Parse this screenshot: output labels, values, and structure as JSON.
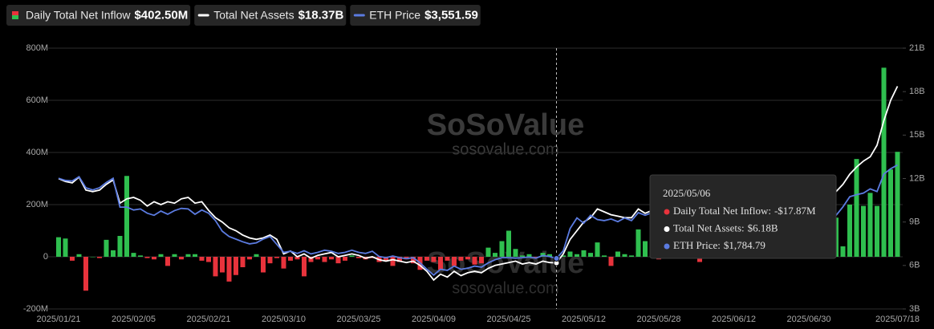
{
  "chart_data": {
    "type": "bar",
    "categories": [
      "2025/01/21",
      null,
      null,
      null,
      null,
      null,
      null,
      null,
      null,
      null,
      null,
      "2025/02/05",
      null,
      null,
      null,
      null,
      null,
      null,
      null,
      null,
      null,
      null,
      "2025/02/21",
      null,
      null,
      null,
      null,
      null,
      null,
      null,
      null,
      null,
      null,
      "2025/03/10",
      null,
      null,
      null,
      null,
      null,
      null,
      null,
      null,
      null,
      null,
      "2025/03/25",
      null,
      null,
      null,
      null,
      null,
      null,
      null,
      null,
      null,
      null,
      "2025/04/09",
      null,
      null,
      null,
      null,
      null,
      null,
      null,
      null,
      null,
      null,
      "2025/04/25",
      null,
      null,
      null,
      null,
      null,
      null,
      null,
      null,
      null,
      null,
      "2025/05/12",
      null,
      null,
      null,
      null,
      null,
      null,
      null,
      null,
      null,
      null,
      "2025/05/28",
      null,
      null,
      null,
      null,
      null,
      null,
      null,
      null,
      null,
      null,
      "2025/06/12",
      null,
      null,
      null,
      null,
      null,
      null,
      null,
      null,
      null,
      null,
      "2025/06/30",
      null,
      null,
      null,
      null,
      null,
      null,
      null,
      null,
      null,
      null,
      null,
      null,
      "2025/07/18"
    ],
    "series": [
      {
        "name": "Daily Total Net Inflow",
        "summary_label": "$402.50M",
        "type": "bar",
        "axis": "y",
        "positive_color": "#2fbf4f",
        "negative_color": "#e8333c",
        "values": [
          75,
          70,
          -15,
          10,
          -130,
          0,
          -5,
          65,
          25,
          80,
          310,
          15,
          5,
          -5,
          -10,
          10,
          -35,
          10,
          -10,
          10,
          10,
          -15,
          -20,
          -75,
          -60,
          -95,
          -70,
          -40,
          -10,
          10,
          -60,
          -25,
          -5,
          -45,
          -15,
          -10,
          -75,
          -20,
          -10,
          -20,
          -10,
          -25,
          -15,
          5,
          -5,
          -10,
          -5,
          -20,
          -15,
          -35,
          -20,
          -10,
          -25,
          -50,
          -15,
          -20,
          -50,
          -15,
          -35,
          -15,
          -10,
          -30,
          -25,
          35,
          15,
          60,
          100,
          30,
          5,
          10,
          -5,
          15,
          10,
          -17.87,
          5,
          20,
          10,
          25,
          15,
          55,
          5,
          -35,
          20,
          10,
          5,
          105,
          60,
          30,
          -10,
          20,
          40,
          10,
          60,
          15,
          -20,
          25,
          50,
          30,
          10,
          40,
          -5,
          20,
          45,
          60,
          25,
          35,
          80,
          50,
          100,
          65,
          120,
          70,
          90,
          60,
          150,
          40,
          200,
          375,
          195,
          245,
          195,
          725,
          335,
          402.5
        ]
      },
      {
        "name": "Total Net Assets",
        "summary_label": "$18.37B",
        "type": "line",
        "axis": "y2",
        "color": "#ffffff",
        "values": [
          12.0,
          11.8,
          11.7,
          12.1,
          11.2,
          11.1,
          11.2,
          11.6,
          11.9,
          10.3,
          10.6,
          10.7,
          10.5,
          10.1,
          10.4,
          10.2,
          10.4,
          10.3,
          10.6,
          10.7,
          10.3,
          10.4,
          9.8,
          9.3,
          9.0,
          8.6,
          8.4,
          8.1,
          7.9,
          7.8,
          7.9,
          8.1,
          7.8,
          6.8,
          7.0,
          6.6,
          6.8,
          6.5,
          6.7,
          6.8,
          6.9,
          6.6,
          6.7,
          6.8,
          6.7,
          6.5,
          6.6,
          6.4,
          6.3,
          6.4,
          6.3,
          6.2,
          6.3,
          6.0,
          5.6,
          5.0,
          5.4,
          5.2,
          5.6,
          5.3,
          5.5,
          5.6,
          5.5,
          5.8,
          6.0,
          6.1,
          6.2,
          6.3,
          6.1,
          6.2,
          6.1,
          6.3,
          6.2,
          6.18,
          6.8,
          7.8,
          8.4,
          9.0,
          9.3,
          9.9,
          9.7,
          9.5,
          9.4,
          9.3,
          9.3,
          9.9,
          9.6,
          9.8,
          9.9,
          10.0,
          9.8,
          9.7,
          9.9,
          10.1,
          10.0,
          9.8,
          9.6,
          9.7,
          9.9,
          10.0,
          10.2,
          10.1,
          9.9,
          10.0,
          10.2,
          10.3,
          10.1,
          10.4,
          10.6,
          10.5,
          10.7,
          10.8,
          10.6,
          10.9,
          11.1,
          11.6,
          12.3,
          12.8,
          13.2,
          13.5,
          14.3,
          16.0,
          17.4,
          18.37
        ]
      },
      {
        "name": "ETH Price",
        "summary_label": "$3,551.59",
        "type": "line",
        "axis": "y3",
        "color": "#5b7be0",
        "values": [
          3300,
          3260,
          3250,
          3330,
          3120,
          3080,
          3120,
          3220,
          3300,
          2755,
          2755,
          2700,
          2720,
          2640,
          2600,
          2680,
          2620,
          2690,
          2730,
          2720,
          2620,
          2700,
          2640,
          2500,
          2300,
          2200,
          2150,
          2100,
          2060,
          2080,
          2150,
          2200,
          2050,
          1900,
          1920,
          1880,
          1930,
          1870,
          1900,
          1940,
          1920,
          1880,
          1900,
          1940,
          1900,
          1880,
          1920,
          1820,
          1800,
          1830,
          1800,
          1780,
          1800,
          1700,
          1580,
          1470,
          1580,
          1560,
          1640,
          1580,
          1600,
          1640,
          1620,
          1700,
          1760,
          1800,
          1800,
          1790,
          1800,
          1810,
          1790,
          1840,
          1820,
          1784.79,
          1930,
          2350,
          2550,
          2450,
          2600,
          2520,
          2500,
          2530,
          2480,
          2550,
          2500,
          2650,
          2600,
          2650,
          2700,
          2620,
          2600,
          2550,
          2500,
          2620,
          2680,
          2600,
          2620,
          2780,
          2650,
          2500,
          2480,
          2550,
          2400,
          2250,
          2430,
          2400,
          2420,
          2480,
          2460,
          2500,
          2440,
          2420,
          2510,
          2570,
          2600,
          2760,
          2950,
          2990,
          3020,
          3100,
          3050,
          3380,
          3480,
          3551.59
        ]
      }
    ],
    "ylim": [
      -200,
      800
    ],
    "yticks": [
      {
        "value": -200,
        "label": "-200M"
      },
      0,
      {
        "value": 200,
        "label": "200M"
      },
      {
        "value": 400,
        "label": "400M"
      },
      {
        "value": 600,
        "label": "600M"
      },
      {
        "value": 800,
        "label": "800M"
      }
    ],
    "y2lim": [
      3,
      21
    ],
    "y2ticks": [
      {
        "value": 3,
        "label": "3B"
      },
      {
        "value": 6,
        "label": "6B"
      },
      {
        "value": 9,
        "label": "9B"
      },
      {
        "value": 12,
        "label": "12B"
      },
      {
        "value": 15,
        "label": "15B"
      },
      {
        "value": 18,
        "label": "18B"
      },
      {
        "value": 21,
        "label": "21B"
      }
    ],
    "y3lim": [
      830,
      5760
    ],
    "grid": true,
    "watermark": [
      "SoSoValue",
      "sosovalue.com"
    ],
    "tooltip": {
      "title": "2025/05/06",
      "items": [
        {
          "label": "Daily Total Net Inflow:",
          "value": -17.87,
          "value_label": "-$17.87M",
          "color": "#e8333c"
        },
        {
          "label": "Total Net Assets:",
          "value": 6.18,
          "value_label": "$6.18B",
          "color": "#ffffff"
        },
        {
          "label": "ETH Price:",
          "value": 1784.79,
          "value_label": "$1,784.79",
          "color": "#5b7be0"
        }
      ]
    }
  }
}
